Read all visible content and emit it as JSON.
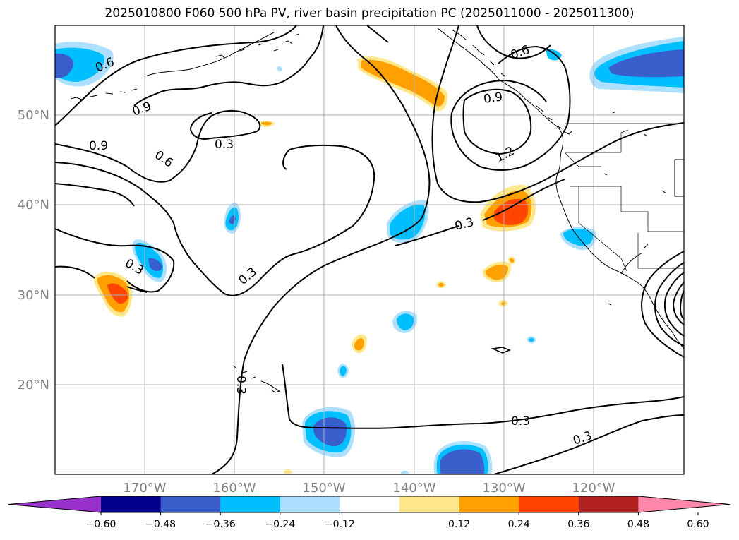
{
  "title": "2025010800 F060 500 hPa PV, river basin precipitation PC (2025011000 - 2025011300)",
  "map": {
    "lat_labels": [
      "50°N",
      "40°N",
      "30°N",
      "20°N"
    ],
    "lon_labels": [
      "170°W",
      "160°W",
      "150°W",
      "140°W",
      "130°W",
      "120°W"
    ],
    "contour_labels": [
      "0.6",
      "0.9",
      "0.9",
      "0.6",
      "0.3",
      "0.3",
      "0.3",
      "0.3",
      "0.6",
      "0.9",
      "1.2",
      "0.3",
      "0.3",
      "0.3"
    ],
    "label_color": "#808080"
  },
  "colorbar": {
    "tick_labels": [
      "−0.60",
      "−0.48",
      "−0.36",
      "−0.24",
      "−0.12",
      "0.12",
      "0.24",
      "0.36",
      "0.48",
      "0.60"
    ],
    "colors": [
      "#9932CC",
      "#00008B",
      "#3A5FCD",
      "#00BFFF",
      "#ADDFFF",
      "#FFFFFF",
      "#FFE88C",
      "#FFA000",
      "#FF4500",
      "#B22222",
      "#FF88AA"
    ]
  }
}
